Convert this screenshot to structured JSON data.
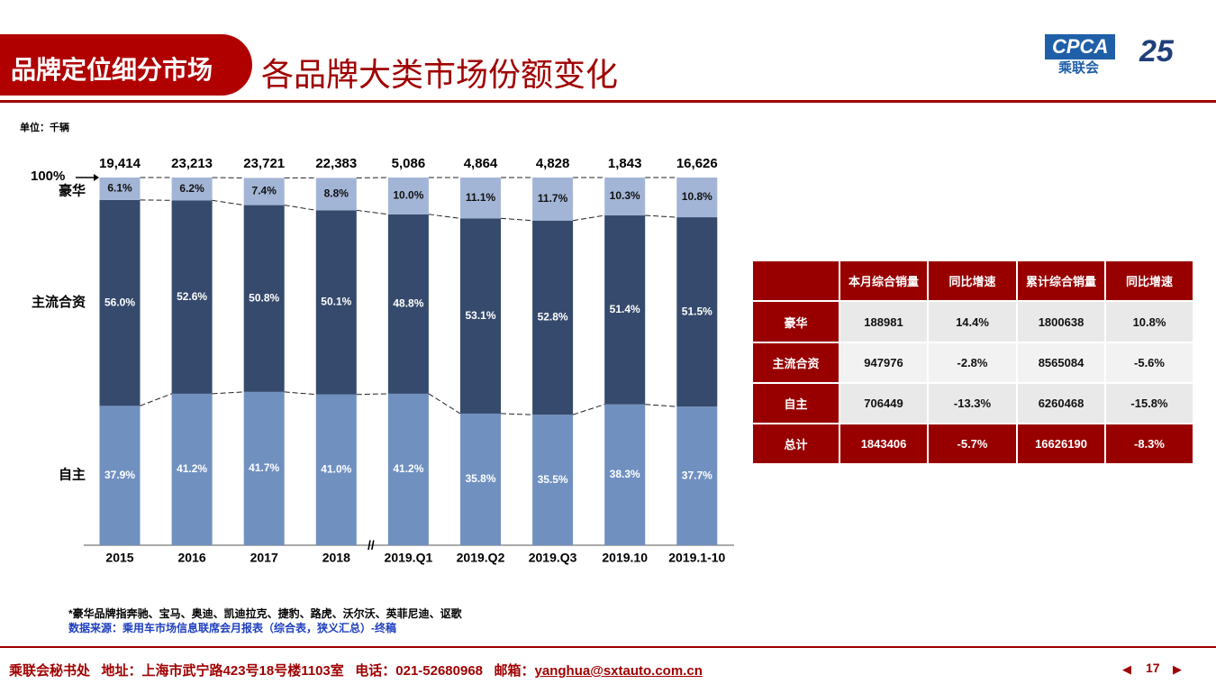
{
  "header": {
    "tag": "品牌定位细分市场",
    "title": "各品牌大类市场份额变化",
    "logo_text": "CPCA",
    "logo_sub": "乘联会",
    "anniversary": "25"
  },
  "unit": "单位：千辆",
  "chart_data": {
    "type": "stacked-bar",
    "annotation": "100%",
    "categories": [
      "2015",
      "2016",
      "2017",
      "2018",
      "2019.Q1",
      "2019.Q2",
      "2019.Q3",
      "2019.10",
      "2019.1-10"
    ],
    "series": [
      {
        "name": "自主",
        "color": "#7090c0",
        "values": [
          37.9,
          41.2,
          41.7,
          41.0,
          41.2,
          35.8,
          35.5,
          38.3,
          37.7
        ],
        "value_labels": [
          "37.9%",
          "41.2%",
          "41.7%",
          "41.0%",
          "41.2%",
          "35.8%",
          "35.5%",
          "38.3%",
          "37.7%"
        ]
      },
      {
        "name": "主流合资",
        "color": "#354a6c",
        "values": [
          56.0,
          52.6,
          50.8,
          50.1,
          48.8,
          53.1,
          52.8,
          51.4,
          51.5
        ],
        "value_labels": [
          "56.0%",
          "52.6%",
          "50.8%",
          "50.1%",
          "48.8%",
          "53.1%",
          "52.8%",
          "51.4%",
          "51.5%"
        ]
      },
      {
        "name": "豪华",
        "color": "#a3b5d6",
        "values": [
          6.1,
          6.2,
          7.4,
          8.8,
          10.0,
          11.1,
          11.7,
          10.3,
          10.8
        ],
        "value_labels": [
          "6.1%",
          "6.2%",
          "7.4%",
          "8.8%",
          "10.0%",
          "11.1%",
          "11.7%",
          "10.3%",
          "10.8%"
        ]
      }
    ],
    "totals": {
      "values": [
        19414,
        23213,
        23721,
        22383,
        5086,
        4864,
        4828,
        1843,
        16626
      ],
      "value_labels": [
        "19,414",
        "23,213",
        "23,721",
        "22,383",
        "5,086",
        "4,864",
        "4,828",
        "1,843",
        "16,626"
      ]
    },
    "ylim": [
      0,
      100
    ]
  },
  "table": {
    "header": [
      "本月综合销量",
      "同比增速",
      "累计综合销量",
      "同比增速"
    ],
    "rows": [
      [
        "豪华",
        "188981",
        "14.4%",
        "1800638",
        "10.8%"
      ],
      [
        "主流合资",
        "947976",
        "-2.8%",
        "8565084",
        "-5.6%"
      ],
      [
        "自主",
        "706449",
        "-13.3%",
        "6260468",
        "-15.8%"
      ],
      [
        "总计",
        "1843406",
        "-5.7%",
        "16626190",
        "-8.3%"
      ]
    ]
  },
  "notes": [
    "*豪华品牌指奔驰、宝马、奥迪、凯迪拉克、捷豹、路虎、沃尔沃、英菲尼迪、讴歌",
    "数据来源：乘用车市场信息联席会月报表（综合表，狭义汇总）-终稿"
  ],
  "footer": {
    "text": "乘联会秘书处   地址：上海市武宁路423号18号楼1103室   电话：021-52680968   邮箱：",
    "email": "yanghua@sxtauto.com.cn",
    "page": "17"
  }
}
